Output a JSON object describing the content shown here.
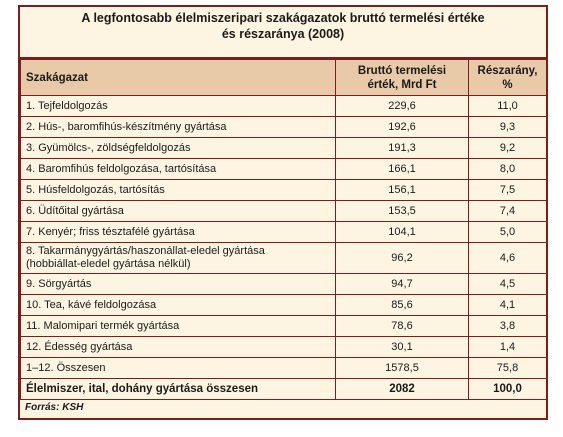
{
  "title_line1": "A legfontosabb élelmiszeripari szakágazatok bruttó termelési értéke",
  "title_line2": "és részaránya (2008)",
  "headers": {
    "col1": "Szakágazat",
    "col2_line1": "Bruttó termelési",
    "col2_line2": "érték, Mrd Ft",
    "col3_line1": "Részarány,",
    "col3_line2": "%"
  },
  "rows": [
    {
      "name": "1. Tejfeldolgozás",
      "value": "229,6",
      "share": "11,0"
    },
    {
      "name": "2. Hús-, baromfihús-készítmény gyártása",
      "value": "192,6",
      "share": "9,3"
    },
    {
      "name": "3. Gyümölcs-, zöldségfeldolgozás",
      "value": "191,3",
      "share": "9,2"
    },
    {
      "name": "4. Baromfihús feldolgozása, tartósítása",
      "value": "166,1",
      "share": "8,0"
    },
    {
      "name": "5. Húsfeldolgozás, tartósítás",
      "value": "156,1",
      "share": "7,5"
    },
    {
      "name": "6. Üdítőital gyártása",
      "value": "153,5",
      "share": "7,4"
    },
    {
      "name": "7. Kenyér; friss tésztafélé gyártása",
      "value": "104,1",
      "share": "5,0"
    },
    {
      "name": "8. Takarmánygyártás/haszonállat-eledel gyártása",
      "name2": "(hobbiállat-eledel gyártása nélkül)",
      "value": "96,2",
      "share": "4,6"
    },
    {
      "name": "9. Sörgyártás",
      "value": "94,7",
      "share": "4,5"
    },
    {
      "name": "10. Tea, kávé feldolgozása",
      "value": "85,6",
      "share": "4,1"
    },
    {
      "name": "11. Malomipari termék gyártása",
      "value": "78,6",
      "share": "3,8"
    },
    {
      "name": "12. Édesség gyártása",
      "value": "30,1",
      "share": "1,4"
    },
    {
      "name": "1–12. Összesen",
      "value": "1578,5",
      "share": "75,8"
    }
  ],
  "total": {
    "name": "Élelmiszer, ital, dohány gyártása összesen",
    "value": "2082",
    "share": "100,0"
  },
  "source": "Forrás: KSH"
}
